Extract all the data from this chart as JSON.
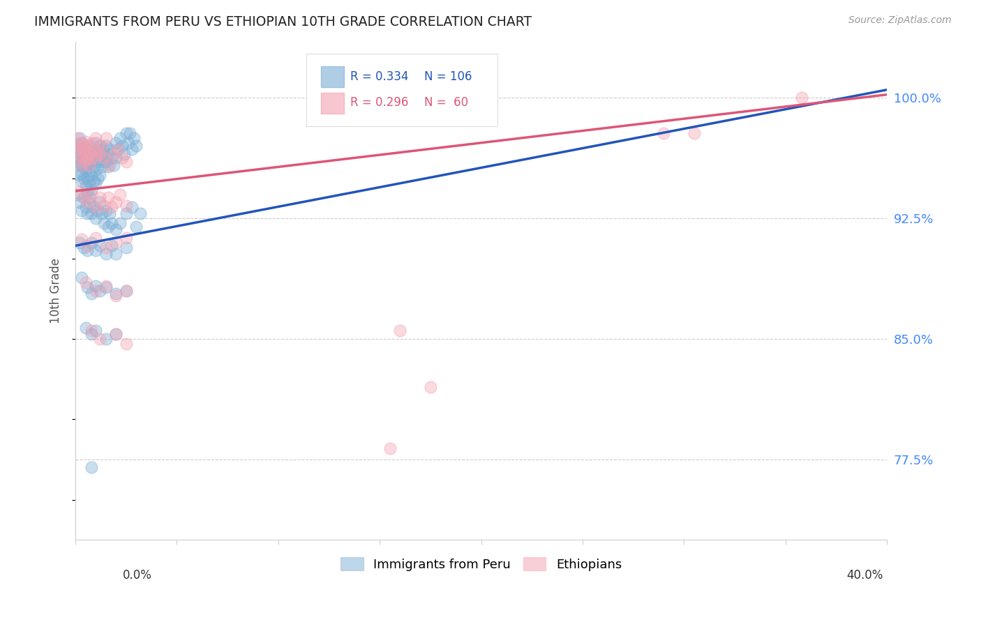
{
  "title": "IMMIGRANTS FROM PERU VS ETHIOPIAN 10TH GRADE CORRELATION CHART",
  "source": "Source: ZipAtlas.com",
  "ylabel": "10th Grade",
  "ytick_values": [
    0.775,
    0.85,
    0.925,
    1.0
  ],
  "xmin": 0.0,
  "xmax": 0.4,
  "ymin": 0.725,
  "ymax": 1.035,
  "legend_blue_label": "Immigrants from Peru",
  "legend_pink_label": "Ethiopians",
  "R_blue": 0.334,
  "N_blue": 106,
  "R_pink": 0.296,
  "N_pink": 60,
  "blue_color": "#7aaed6",
  "pink_color": "#f4a0b0",
  "blue_line_color": "#2255bb",
  "pink_line_color": "#dd5577",
  "blue_line": [
    0.0,
    0.908,
    0.4,
    1.005
  ],
  "pink_line": [
    0.0,
    0.942,
    0.4,
    1.002
  ],
  "blue_scatter": [
    [
      0.001,
      0.971
    ],
    [
      0.001,
      0.966
    ],
    [
      0.001,
      0.963
    ],
    [
      0.001,
      0.96
    ],
    [
      0.002,
      0.975
    ],
    [
      0.002,
      0.968
    ],
    [
      0.002,
      0.958
    ],
    [
      0.002,
      0.952
    ],
    [
      0.003,
      0.972
    ],
    [
      0.003,
      0.965
    ],
    [
      0.003,
      0.958
    ],
    [
      0.003,
      0.953
    ],
    [
      0.003,
      0.948
    ],
    [
      0.004,
      0.97
    ],
    [
      0.004,
      0.962
    ],
    [
      0.004,
      0.957
    ],
    [
      0.004,
      0.95
    ],
    [
      0.005,
      0.968
    ],
    [
      0.005,
      0.96
    ],
    [
      0.005,
      0.955
    ],
    [
      0.005,
      0.945
    ],
    [
      0.006,
      0.966
    ],
    [
      0.006,
      0.958
    ],
    [
      0.006,
      0.95
    ],
    [
      0.006,
      0.942
    ],
    [
      0.007,
      0.97
    ],
    [
      0.007,
      0.963
    ],
    [
      0.007,
      0.955
    ],
    [
      0.007,
      0.948
    ],
    [
      0.007,
      0.938
    ],
    [
      0.008,
      0.968
    ],
    [
      0.008,
      0.96
    ],
    [
      0.008,
      0.952
    ],
    [
      0.008,
      0.943
    ],
    [
      0.009,
      0.965
    ],
    [
      0.009,
      0.957
    ],
    [
      0.009,
      0.948
    ],
    [
      0.01,
      0.972
    ],
    [
      0.01,
      0.963
    ],
    [
      0.01,
      0.955
    ],
    [
      0.01,
      0.947
    ],
    [
      0.011,
      0.968
    ],
    [
      0.011,
      0.96
    ],
    [
      0.011,
      0.95
    ],
    [
      0.012,
      0.97
    ],
    [
      0.012,
      0.962
    ],
    [
      0.012,
      0.952
    ],
    [
      0.013,
      0.965
    ],
    [
      0.013,
      0.957
    ],
    [
      0.014,
      0.968
    ],
    [
      0.014,
      0.96
    ],
    [
      0.015,
      0.97
    ],
    [
      0.015,
      0.96
    ],
    [
      0.016,
      0.965
    ],
    [
      0.016,
      0.957
    ],
    [
      0.017,
      0.968
    ],
    [
      0.018,
      0.963
    ],
    [
      0.019,
      0.958
    ],
    [
      0.02,
      0.972
    ],
    [
      0.02,
      0.963
    ],
    [
      0.021,
      0.968
    ],
    [
      0.022,
      0.975
    ],
    [
      0.023,
      0.97
    ],
    [
      0.024,
      0.965
    ],
    [
      0.025,
      0.978
    ],
    [
      0.026,
      0.972
    ],
    [
      0.027,
      0.978
    ],
    [
      0.028,
      0.968
    ],
    [
      0.029,
      0.975
    ],
    [
      0.03,
      0.97
    ],
    [
      0.001,
      0.94
    ],
    [
      0.002,
      0.935
    ],
    [
      0.003,
      0.93
    ],
    [
      0.004,
      0.938
    ],
    [
      0.005,
      0.932
    ],
    [
      0.006,
      0.928
    ],
    [
      0.007,
      0.935
    ],
    [
      0.008,
      0.928
    ],
    [
      0.009,
      0.932
    ],
    [
      0.01,
      0.925
    ],
    [
      0.011,
      0.93
    ],
    [
      0.012,
      0.935
    ],
    [
      0.013,
      0.928
    ],
    [
      0.014,
      0.922
    ],
    [
      0.015,
      0.93
    ],
    [
      0.016,
      0.92
    ],
    [
      0.017,
      0.928
    ],
    [
      0.018,
      0.922
    ],
    [
      0.02,
      0.918
    ],
    [
      0.022,
      0.922
    ],
    [
      0.025,
      0.928
    ],
    [
      0.028,
      0.932
    ],
    [
      0.03,
      0.92
    ],
    [
      0.032,
      0.928
    ],
    [
      0.002,
      0.91
    ],
    [
      0.004,
      0.907
    ],
    [
      0.006,
      0.905
    ],
    [
      0.008,
      0.91
    ],
    [
      0.01,
      0.905
    ],
    [
      0.012,
      0.908
    ],
    [
      0.015,
      0.903
    ],
    [
      0.018,
      0.908
    ],
    [
      0.02,
      0.903
    ],
    [
      0.025,
      0.907
    ],
    [
      0.003,
      0.888
    ],
    [
      0.006,
      0.882
    ],
    [
      0.008,
      0.878
    ],
    [
      0.01,
      0.883
    ],
    [
      0.012,
      0.88
    ],
    [
      0.015,
      0.882
    ],
    [
      0.02,
      0.878
    ],
    [
      0.025,
      0.88
    ],
    [
      0.005,
      0.857
    ],
    [
      0.008,
      0.853
    ],
    [
      0.01,
      0.855
    ],
    [
      0.015,
      0.85
    ],
    [
      0.02,
      0.853
    ],
    [
      0.008,
      0.77
    ]
  ],
  "pink_scatter": [
    [
      0.001,
      0.975
    ],
    [
      0.001,
      0.968
    ],
    [
      0.002,
      0.972
    ],
    [
      0.002,
      0.965
    ],
    [
      0.003,
      0.97
    ],
    [
      0.003,
      0.963
    ],
    [
      0.003,
      0.958
    ],
    [
      0.004,
      0.968
    ],
    [
      0.004,
      0.96
    ],
    [
      0.005,
      0.973
    ],
    [
      0.005,
      0.965
    ],
    [
      0.006,
      0.97
    ],
    [
      0.006,
      0.962
    ],
    [
      0.007,
      0.965
    ],
    [
      0.007,
      0.958
    ],
    [
      0.008,
      0.972
    ],
    [
      0.008,
      0.963
    ],
    [
      0.009,
      0.968
    ],
    [
      0.01,
      0.975
    ],
    [
      0.01,
      0.963
    ],
    [
      0.011,
      0.968
    ],
    [
      0.012,
      0.965
    ],
    [
      0.013,
      0.97
    ],
    [
      0.014,
      0.963
    ],
    [
      0.015,
      0.975
    ],
    [
      0.017,
      0.958
    ],
    [
      0.019,
      0.965
    ],
    [
      0.021,
      0.968
    ],
    [
      0.023,
      0.963
    ],
    [
      0.025,
      0.96
    ],
    [
      0.002,
      0.942
    ],
    [
      0.004,
      0.938
    ],
    [
      0.006,
      0.935
    ],
    [
      0.008,
      0.94
    ],
    [
      0.01,
      0.932
    ],
    [
      0.012,
      0.938
    ],
    [
      0.014,
      0.933
    ],
    [
      0.016,
      0.938
    ],
    [
      0.018,
      0.932
    ],
    [
      0.02,
      0.935
    ],
    [
      0.022,
      0.94
    ],
    [
      0.025,
      0.933
    ],
    [
      0.003,
      0.912
    ],
    [
      0.006,
      0.908
    ],
    [
      0.01,
      0.913
    ],
    [
      0.015,
      0.907
    ],
    [
      0.02,
      0.91
    ],
    [
      0.025,
      0.913
    ],
    [
      0.005,
      0.885
    ],
    [
      0.01,
      0.88
    ],
    [
      0.015,
      0.883
    ],
    [
      0.02,
      0.877
    ],
    [
      0.025,
      0.88
    ],
    [
      0.008,
      0.855
    ],
    [
      0.012,
      0.85
    ],
    [
      0.02,
      0.853
    ],
    [
      0.025,
      0.847
    ],
    [
      0.175,
      0.82
    ],
    [
      0.155,
      0.782
    ],
    [
      0.16,
      0.855
    ],
    [
      0.29,
      0.978
    ],
    [
      0.305,
      0.978
    ],
    [
      0.358,
      1.0
    ]
  ]
}
